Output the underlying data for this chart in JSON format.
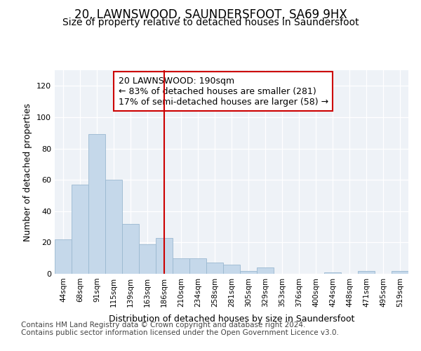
{
  "title": "20, LAWNSWOOD, SAUNDERSFOOT, SA69 9HX",
  "subtitle": "Size of property relative to detached houses in Saundersfoot",
  "xlabel": "Distribution of detached houses by size in Saundersfoot",
  "ylabel": "Number of detached properties",
  "bar_labels": [
    "44sqm",
    "68sqm",
    "91sqm",
    "115sqm",
    "139sqm",
    "163sqm",
    "186sqm",
    "210sqm",
    "234sqm",
    "258sqm",
    "281sqm",
    "305sqm",
    "329sqm",
    "353sqm",
    "376sqm",
    "400sqm",
    "424sqm",
    "448sqm",
    "471sqm",
    "495sqm",
    "519sqm"
  ],
  "bar_values": [
    22,
    57,
    89,
    60,
    32,
    19,
    23,
    10,
    10,
    7,
    6,
    2,
    4,
    0,
    0,
    0,
    1,
    0,
    2,
    0,
    2
  ],
  "bar_color": "#c5d8ea",
  "bar_edgecolor": "#9ab8d0",
  "vline_index": 6,
  "vline_color": "#cc0000",
  "annotation_text": "20 LAWNSWOOD: 190sqm\n← 83% of detached houses are smaller (281)\n17% of semi-detached houses are larger (58) →",
  "annotation_box_color": "#cc0000",
  "annotation_fontsize": 9,
  "ylim": [
    0,
    130
  ],
  "yticks": [
    0,
    20,
    40,
    60,
    80,
    100,
    120
  ],
  "footer_text": "Contains HM Land Registry data © Crown copyright and database right 2024.\nContains public sector information licensed under the Open Government Licence v3.0.",
  "title_fontsize": 12,
  "subtitle_fontsize": 10,
  "xlabel_fontsize": 9,
  "ylabel_fontsize": 9,
  "footer_fontsize": 7.5,
  "bg_color": "#eef2f7"
}
